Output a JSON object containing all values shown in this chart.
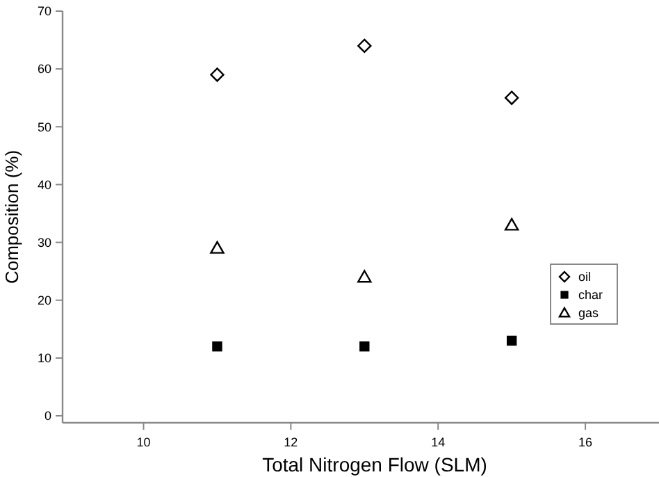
{
  "chart_data": {
    "type": "scatter",
    "xlabel": "Total Nitrogen Flow (SLM)",
    "ylabel": "Composition (%)",
    "x": [
      11,
      13,
      15
    ],
    "xlim": [
      8.9,
      17
    ],
    "xticks": [
      10,
      12,
      14,
      16
    ],
    "ylim": [
      -1.2,
      70
    ],
    "yticks": [
      0,
      10,
      20,
      30,
      40,
      50,
      60,
      70
    ],
    "grid": false,
    "legend": "right",
    "series": [
      {
        "name": "oil",
        "color": "#000000",
        "marker": "diamond",
        "values": [
          59,
          64,
          55
        ]
      },
      {
        "name": "char",
        "color": "#000000",
        "marker": "square",
        "values": [
          12,
          12,
          13
        ]
      },
      {
        "name": "gas",
        "color": "#000000",
        "marker": "triangle",
        "values": [
          29,
          24,
          33
        ]
      }
    ]
  }
}
